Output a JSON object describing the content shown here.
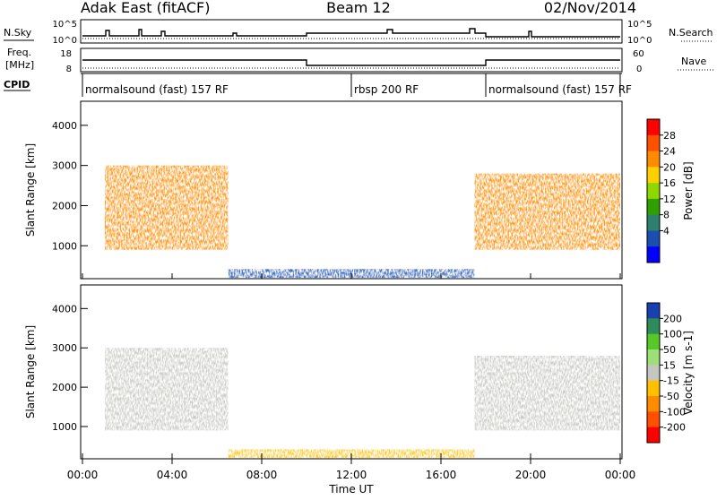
{
  "header": {
    "station": "Adak East (fitACF)",
    "beam": "Beam 12",
    "date": "02/Nov/2014"
  },
  "panels": {
    "nsky": {
      "label": "N.Sky",
      "right_label": "N.Search",
      "ticks": [
        "10^5",
        "10^0"
      ]
    },
    "freq": {
      "label_1": "Freq.",
      "label_2": "[MHz]",
      "ticks": [
        "18",
        "8"
      ],
      "right_label": "Nave",
      "right_ticks": [
        "60",
        "0"
      ]
    },
    "cpid": {
      "label": "CPID",
      "segments": [
        {
          "name": "normalsound (fast) 157 RF",
          "start": 0,
          "end": 12
        },
        {
          "name": "rbsp 200 RF",
          "start": 12,
          "end": 18
        },
        {
          "name": "normalsound (fast) 157 RF",
          "start": 18,
          "end": 24
        }
      ]
    }
  },
  "chart_data": [
    {
      "type": "heatmap",
      "title": "",
      "xlabel": "Time UT",
      "ylabel": "Slant Range [km]",
      "xlim": [
        0,
        24
      ],
      "ylim": [
        180,
        4600
      ],
      "x_ticks": [
        "00:00",
        "04:00",
        "08:00",
        "12:00",
        "16:00",
        "20:00",
        "00:00"
      ],
      "y_ticks": [
        "1000",
        "2000",
        "3000",
        "4000"
      ],
      "colorbar": {
        "label": "Power [dB]",
        "ticks": [
          "28",
          "24",
          "20",
          "16",
          "12",
          "8",
          "4"
        ],
        "colors": [
          "#ff0000",
          "#ff5000",
          "#ff8c00",
          "#ffd000",
          "#8ed800",
          "#30a000",
          "#2f7f6f",
          "#1a4fb0",
          "#0000ff"
        ]
      },
      "regions": [
        {
          "t": [
            1.0,
            6.5
          ],
          "range_km": [
            900,
            3000
          ],
          "value": 26
        },
        {
          "t": [
            17.5,
            24
          ],
          "range_km": [
            900,
            2800
          ],
          "value": 26
        }
      ]
    },
    {
      "type": "heatmap",
      "title": "",
      "xlabel": "Time UT",
      "ylabel": "Slant Range [km]",
      "xlim": [
        0,
        24
      ],
      "ylim": [
        180,
        4600
      ],
      "x_ticks": [
        "00:00",
        "04:00",
        "08:00",
        "12:00",
        "16:00",
        "20:00",
        "00:00"
      ],
      "y_ticks": [
        "1000",
        "2000",
        "3000",
        "4000"
      ],
      "colorbar": {
        "label": "Velocity [m s-1]",
        "ticks": [
          "200",
          "100",
          "50",
          "15",
          "-15",
          "-50",
          "-100",
          "-200"
        ],
        "colors": [
          "#1a3fb0",
          "#2e8c5a",
          "#58c828",
          "#9de07a",
          "#c6c6c0",
          "#ffc000",
          "#ff8c00",
          "#ff5000",
          "#ff0000"
        ]
      },
      "regions": [
        {
          "t": [
            1.0,
            6.5
          ],
          "range_km": [
            900,
            3000
          ],
          "value": 0
        },
        {
          "t": [
            17.5,
            24
          ],
          "range_km": [
            900,
            2800
          ],
          "value": 0
        }
      ]
    }
  ]
}
